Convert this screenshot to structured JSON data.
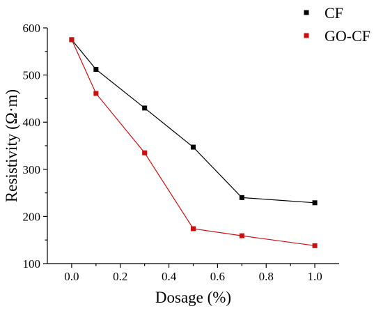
{
  "chart_data": {
    "type": "line",
    "title": "",
    "xlabel": "Dosage (%)",
    "ylabel": "Resistivity (Ω·m)",
    "xlim": [
      -0.1,
      1.1
    ],
    "ylim": [
      100,
      600
    ],
    "xticks": [
      0.0,
      0.2,
      0.4,
      0.6,
      0.8,
      1.0
    ],
    "xtick_labels": [
      "0.0",
      "0.2",
      "0.4",
      "0.6",
      "0.8",
      "1.0"
    ],
    "yticks": [
      100,
      200,
      300,
      400,
      500,
      600
    ],
    "ytick_labels": [
      "100",
      "200",
      "300",
      "400",
      "500",
      "600"
    ],
    "grid": false,
    "legend": "top-right",
    "series": [
      {
        "name": "CF",
        "color": "#000000",
        "marker": "square",
        "x": [
          0.0,
          0.1,
          0.3,
          0.5,
          0.7,
          1.0
        ],
        "y": [
          575,
          512,
          430,
          347,
          240,
          229
        ]
      },
      {
        "name": "GO-CF",
        "color": "#cc1010",
        "marker": "square",
        "x": [
          0.0,
          0.1,
          0.3,
          0.5,
          0.7,
          1.0
        ],
        "y": [
          575,
          461,
          335,
          174,
          159,
          138
        ]
      }
    ]
  }
}
